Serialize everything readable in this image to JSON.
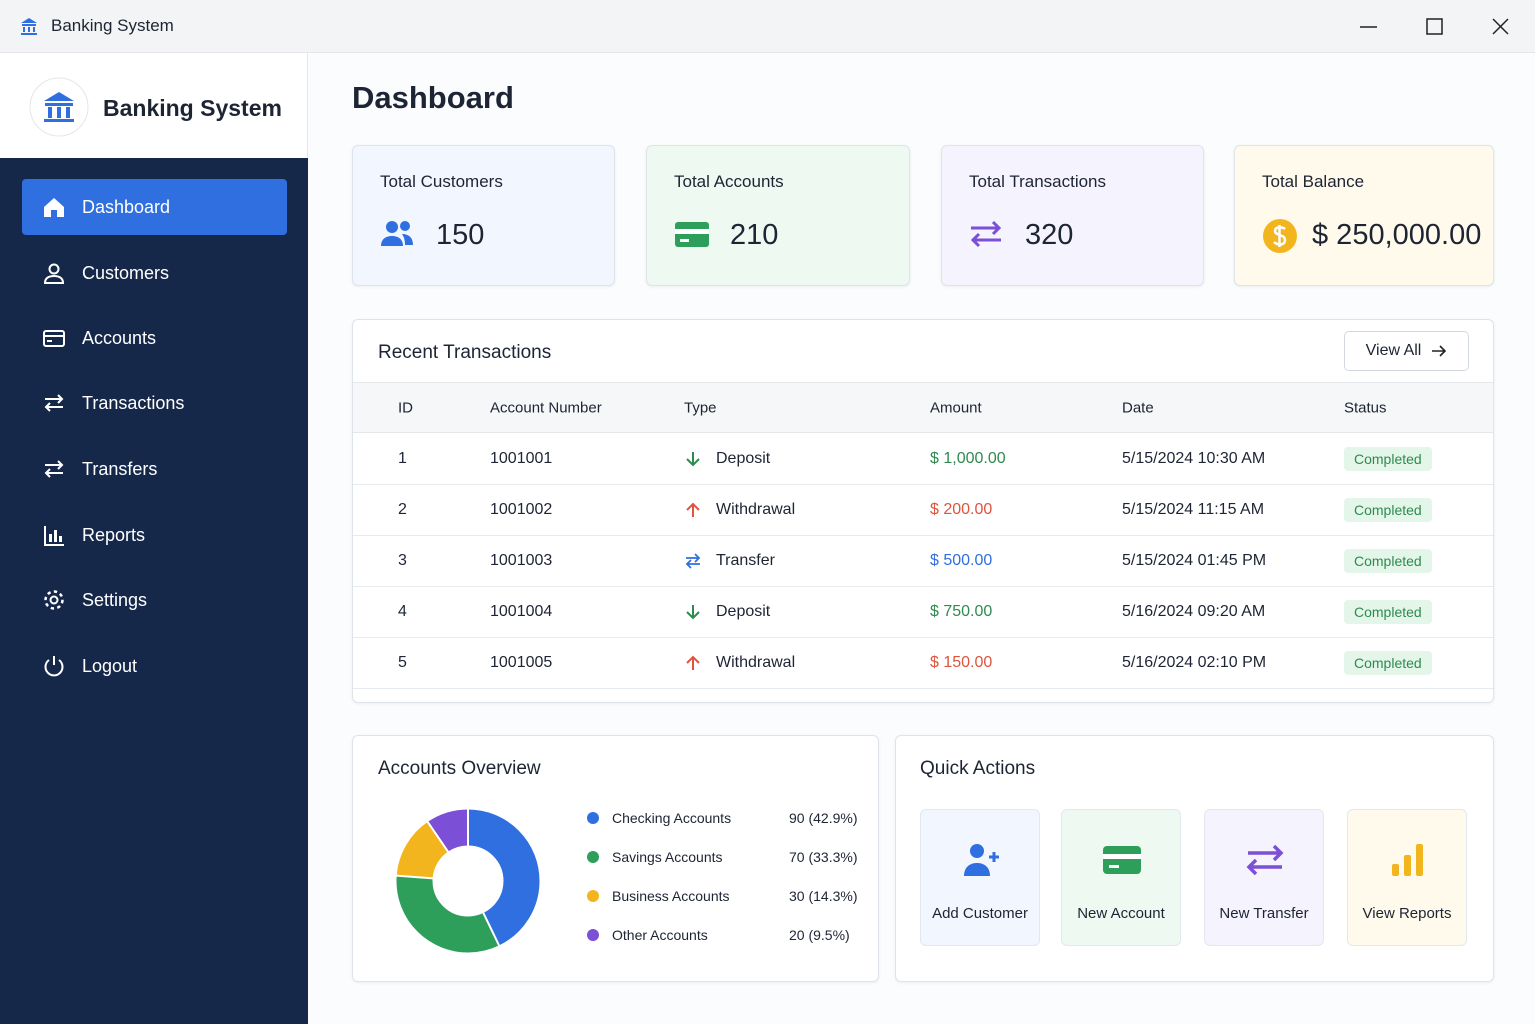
{
  "window": {
    "title": "Banking System"
  },
  "sidebar": {
    "brand": "Banking System",
    "nav": [
      "Dashboard",
      "Customers",
      "Accounts",
      "Transactions",
      "Transfers",
      "Reports",
      "Settings",
      "Logout"
    ]
  },
  "header": {
    "title": "Dashboard"
  },
  "stats": [
    {
      "label": "Total Customers",
      "value": "150"
    },
    {
      "label": "Total Accounts",
      "value": "210"
    },
    {
      "label": "Total Transactions",
      "value": "320"
    },
    {
      "label": "Total Balance",
      "value": "$ 250,000.00"
    }
  ],
  "transactions": {
    "title": "Recent Transactions",
    "view_all": "View All",
    "columns": [
      "ID",
      "Account Number",
      "Type",
      "Amount",
      "Date",
      "Status"
    ],
    "rows": [
      [
        "1",
        "1001001",
        "Deposit",
        "$ 1,000.00",
        "5/15/2024 10:30 AM",
        "Completed"
      ],
      [
        "2",
        "1001002",
        "Withdrawal",
        "$ 200.00",
        "5/15/2024 11:15 AM",
        "Completed"
      ],
      [
        "3",
        "1001003",
        "Transfer",
        "$ 500.00",
        "5/15/2024 01:45 PM",
        "Completed"
      ],
      [
        "4",
        "1001004",
        "Deposit",
        "$ 750.00",
        "5/16/2024 09:20 AM",
        "Completed"
      ],
      [
        "5",
        "1001005",
        "Withdrawal",
        "$ 150.00",
        "5/16/2024 02:10 PM",
        "Completed"
      ]
    ]
  },
  "overview": {
    "title": "Accounts Overview",
    "type": "donut",
    "categories": [
      "Checking Accounts",
      "Savings Accounts",
      "Business Accounts",
      "Other Accounts"
    ],
    "values": [
      90,
      70,
      30,
      20
    ],
    "value_labels": [
      "90 (42.9%)",
      "70 (33.3%)",
      "30 (14.3%)",
      "20 (9.5%)"
    ],
    "colors": [
      "#2f6fdf",
      "#2e9e5b",
      "#f2b51d",
      "#7b4fd6"
    ]
  },
  "quick_actions": {
    "title": "Quick Actions",
    "items": [
      "Add Customer",
      "New Account",
      "New Transfer",
      "View Reports"
    ]
  }
}
